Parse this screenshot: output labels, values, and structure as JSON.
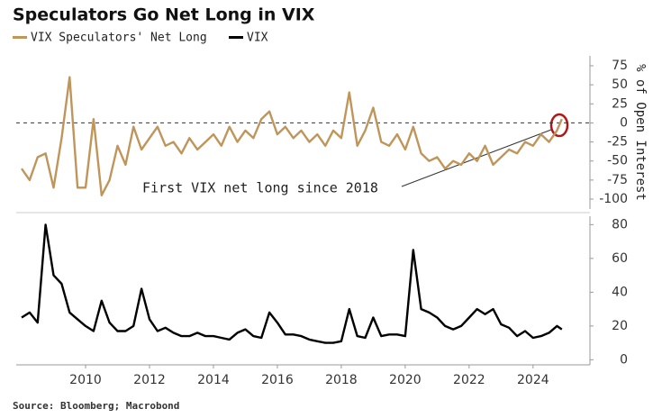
{
  "chart_data": [
    {
      "type": "line",
      "title": "Speculators Go Net Long in VIX",
      "ylabel": "% of Open Interest",
      "annotation": "First VIX net long since 2018",
      "reference_line": 0,
      "xlim": [
        2007.83,
        2025.78
      ],
      "ylim": [
        -113,
        88
      ],
      "yticks": [
        75,
        50,
        25,
        0,
        -25,
        -50,
        -75,
        -100
      ],
      "x": [
        2008.0,
        2008.25,
        2008.5,
        2008.75,
        2009.0,
        2009.25,
        2009.5,
        2009.75,
        2010.0,
        2010.25,
        2010.5,
        2010.75,
        2011.0,
        2011.25,
        2011.5,
        2011.75,
        2012.0,
        2012.25,
        2012.5,
        2012.75,
        2013.0,
        2013.25,
        2013.5,
        2013.75,
        2014.0,
        2014.25,
        2014.5,
        2014.75,
        2015.0,
        2015.25,
        2015.5,
        2015.75,
        2016.0,
        2016.25,
        2016.5,
        2016.75,
        2017.0,
        2017.25,
        2017.5,
        2017.75,
        2018.0,
        2018.25,
        2018.5,
        2018.75,
        2019.0,
        2019.25,
        2019.5,
        2019.75,
        2020.0,
        2020.25,
        2020.5,
        2020.75,
        2021.0,
        2021.25,
        2021.5,
        2021.75,
        2022.0,
        2022.25,
        2022.5,
        2022.75,
        2023.0,
        2023.25,
        2023.5,
        2023.75,
        2024.0,
        2024.25,
        2024.5,
        2024.75,
        2024.9
      ],
      "series": [
        {
          "name": "VIX Speculators' Net Long",
          "color": "#c0955a",
          "values": [
            -60,
            -75,
            -45,
            -40,
            -85,
            -20,
            60,
            -85,
            -85,
            5,
            -95,
            -75,
            -30,
            -55,
            -5,
            -35,
            -20,
            -5,
            -30,
            -25,
            -40,
            -20,
            -35,
            -25,
            -15,
            -30,
            -5,
            -25,
            -10,
            -20,
            5,
            15,
            -15,
            -5,
            -20,
            -10,
            -25,
            -15,
            -30,
            -10,
            -20,
            40,
            -30,
            -10,
            20,
            -25,
            -30,
            -15,
            -35,
            -5,
            -40,
            -50,
            -45,
            -60,
            -50,
            -55,
            -40,
            -50,
            -30,
            -55,
            -45,
            -35,
            -40,
            -25,
            -30,
            -15,
            -25,
            -10,
            5
          ]
        }
      ]
    },
    {
      "type": "line",
      "source": "Source: Bloomberg; Macrobond",
      "xlim": [
        2007.83,
        2025.78
      ],
      "ylim": [
        -3,
        85
      ],
      "xticks": [
        2010,
        2012,
        2014,
        2016,
        2018,
        2020,
        2022,
        2024
      ],
      "yticks": [
        80,
        60,
        40,
        20,
        0
      ],
      "x": [
        2008.0,
        2008.25,
        2008.5,
        2008.75,
        2009.0,
        2009.25,
        2009.5,
        2009.75,
        2010.0,
        2010.25,
        2010.5,
        2010.75,
        2011.0,
        2011.25,
        2011.5,
        2011.75,
        2012.0,
        2012.25,
        2012.5,
        2012.75,
        2013.0,
        2013.25,
        2013.5,
        2013.75,
        2014.0,
        2014.25,
        2014.5,
        2014.75,
        2015.0,
        2015.25,
        2015.5,
        2015.75,
        2016.0,
        2016.25,
        2016.5,
        2016.75,
        2017.0,
        2017.25,
        2017.5,
        2017.75,
        2018.0,
        2018.25,
        2018.5,
        2018.75,
        2019.0,
        2019.25,
        2019.5,
        2019.75,
        2020.0,
        2020.25,
        2020.5,
        2020.75,
        2021.0,
        2021.25,
        2021.5,
        2021.75,
        2022.0,
        2022.25,
        2022.5,
        2022.75,
        2023.0,
        2023.25,
        2023.5,
        2023.75,
        2024.0,
        2024.25,
        2024.5,
        2024.75,
        2024.9
      ],
      "series": [
        {
          "name": "VIX",
          "color": "#000000",
          "values": [
            25,
            28,
            22,
            80,
            50,
            45,
            28,
            24,
            20,
            17,
            35,
            22,
            17,
            17,
            20,
            42,
            24,
            17,
            19,
            16,
            14,
            14,
            16,
            14,
            14,
            13,
            12,
            16,
            18,
            14,
            13,
            28,
            22,
            15,
            15,
            14,
            12,
            11,
            10,
            10,
            11,
            30,
            14,
            13,
            25,
            14,
            15,
            15,
            14,
            65,
            30,
            28,
            25,
            20,
            18,
            20,
            25,
            30,
            27,
            30,
            21,
            19,
            14,
            17,
            13,
            14,
            16,
            20,
            18
          ]
        }
      ]
    }
  ]
}
